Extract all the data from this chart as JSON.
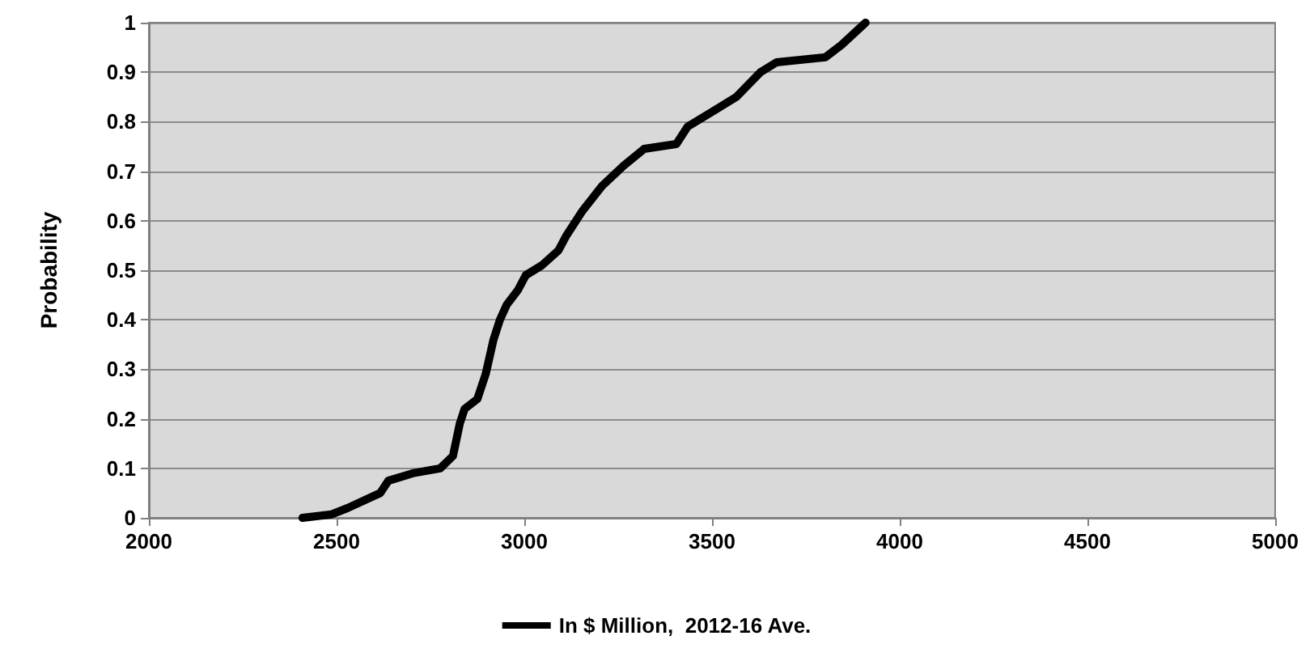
{
  "chart_data": {
    "type": "line",
    "ylabel": "Probability",
    "legend": "bottom",
    "grid": "y",
    "marker": "none",
    "line_style": "solid",
    "xlim": [
      2000,
      5000
    ],
    "xticks": [
      2000,
      2500,
      3000,
      3500,
      4000,
      4500,
      5000
    ],
    "ylim": [
      0,
      1
    ],
    "yticks": [
      0,
      0.1,
      0.2,
      0.3,
      0.4,
      0.5,
      0.6,
      0.7,
      0.8,
      0.9,
      1
    ],
    "x": [
      2409,
      2487,
      2530,
      2616,
      2638,
      2703,
      2776,
      2810,
      2828,
      2841,
      2875,
      2897,
      2918,
      2935,
      2953,
      2983,
      3004,
      3047,
      3091,
      3112,
      3155,
      3207,
      3263,
      3319,
      3405,
      3435,
      3500,
      3565,
      3629,
      3672,
      3802,
      3845,
      3909
    ],
    "series": [
      {
        "name": "In $ Million,  2012-16 Ave.",
        "color": "#000000",
        "values": [
          0,
          0.007,
          0.02,
          0.05,
          0.075,
          0.09,
          0.1,
          0.125,
          0.19,
          0.22,
          0.24,
          0.29,
          0.36,
          0.4,
          0.43,
          0.46,
          0.49,
          0.51,
          0.54,
          0.57,
          0.62,
          0.67,
          0.71,
          0.745,
          0.755,
          0.79,
          0.82,
          0.85,
          0.9,
          0.92,
          0.93,
          0.955,
          1
        ]
      }
    ]
  }
}
